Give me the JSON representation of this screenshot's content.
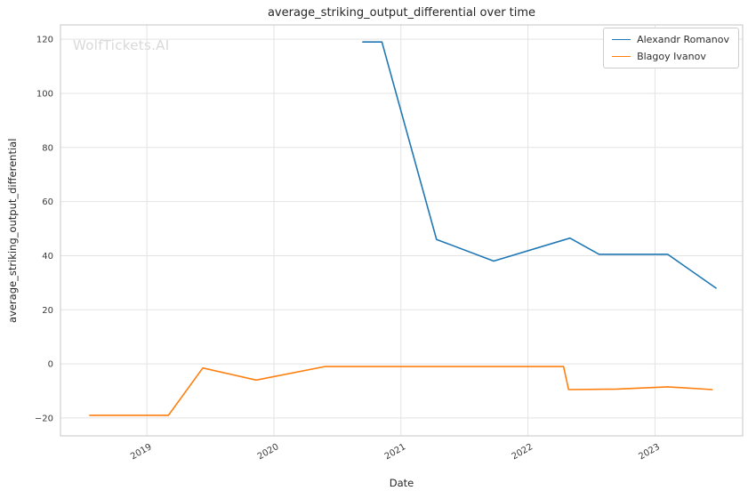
{
  "figure": {
    "title": "average_striking_output_differential over time",
    "watermark": "WolfTickets.AI"
  },
  "chart_data": {
    "type": "line",
    "title": "average_striking_output_differential over time",
    "xlabel": "Date",
    "ylabel": "average_striking_output_differential",
    "xlim": [
      2018.32,
      2023.69
    ],
    "ylim": [
      -26.6,
      125.3
    ],
    "xticks": [
      2019,
      2020,
      2021,
      2022,
      2023
    ],
    "yticks": [
      -20,
      0,
      20,
      40,
      60,
      80,
      100,
      120
    ],
    "grid": true,
    "legend_position": "upper right",
    "colors": {
      "grid": "#e3e3e3",
      "spine": "#cfcfcf",
      "tick_label": "#3a3a3a"
    },
    "series": [
      {
        "name": "Alexandr Romanov",
        "color": "#1f77b4",
        "points": [
          [
            2020.7,
            119
          ],
          [
            2020.85,
            119
          ],
          [
            2021.28,
            46
          ],
          [
            2021.73,
            38
          ],
          [
            2022.33,
            46.5
          ],
          [
            2022.56,
            40.5
          ],
          [
            2023.1,
            40.5
          ],
          [
            2023.48,
            28
          ]
        ]
      },
      {
        "name": "Blagoy Ivanov",
        "color": "#ff7f0e",
        "points": [
          [
            2018.55,
            -19
          ],
          [
            2019.17,
            -19
          ],
          [
            2019.44,
            -1.5
          ],
          [
            2019.86,
            -6
          ],
          [
            2020.4,
            -1
          ],
          [
            2022.28,
            -1
          ],
          [
            2022.32,
            -9.5
          ],
          [
            2022.7,
            -9.3
          ],
          [
            2023.1,
            -8.5
          ],
          [
            2023.45,
            -9.5
          ]
        ]
      }
    ]
  }
}
